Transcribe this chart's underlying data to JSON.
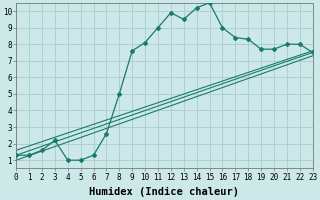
{
  "xlabel": "Humidex (Indice chaleur)",
  "bg_color": "#cce8e8",
  "grid_color": "#aacccc",
  "line_color": "#1a7a6e",
  "xlim": [
    0,
    23
  ],
  "ylim": [
    0.5,
    10.5
  ],
  "xticks": [
    0,
    1,
    2,
    3,
    4,
    5,
    6,
    7,
    8,
    9,
    10,
    11,
    12,
    13,
    14,
    15,
    16,
    17,
    18,
    19,
    20,
    21,
    22,
    23
  ],
  "yticks": [
    1,
    2,
    3,
    4,
    5,
    6,
    7,
    8,
    9,
    10
  ],
  "series1_x": [
    0,
    1,
    2,
    3,
    4,
    5,
    6,
    7,
    8,
    9,
    10,
    11,
    12,
    13,
    14,
    15,
    16,
    17,
    18,
    19,
    20,
    21,
    22,
    23
  ],
  "series1_y": [
    1.3,
    1.3,
    1.6,
    2.2,
    1.0,
    1.0,
    1.3,
    2.6,
    5.0,
    7.6,
    8.1,
    9.0,
    9.9,
    9.5,
    10.2,
    10.5,
    9.0,
    8.4,
    8.3,
    7.7,
    7.7,
    8.0,
    8.0,
    7.5
  ],
  "line1_x": [
    0,
    23
  ],
  "line1_y": [
    1.3,
    7.5
  ],
  "line2_x": [
    0,
    23
  ],
  "line2_y": [
    1.0,
    7.3
  ],
  "line3_x": [
    0,
    23
  ],
  "line3_y": [
    1.6,
    7.6
  ],
  "tick_fontsize": 5.5,
  "xlabel_fontsize": 7.5
}
